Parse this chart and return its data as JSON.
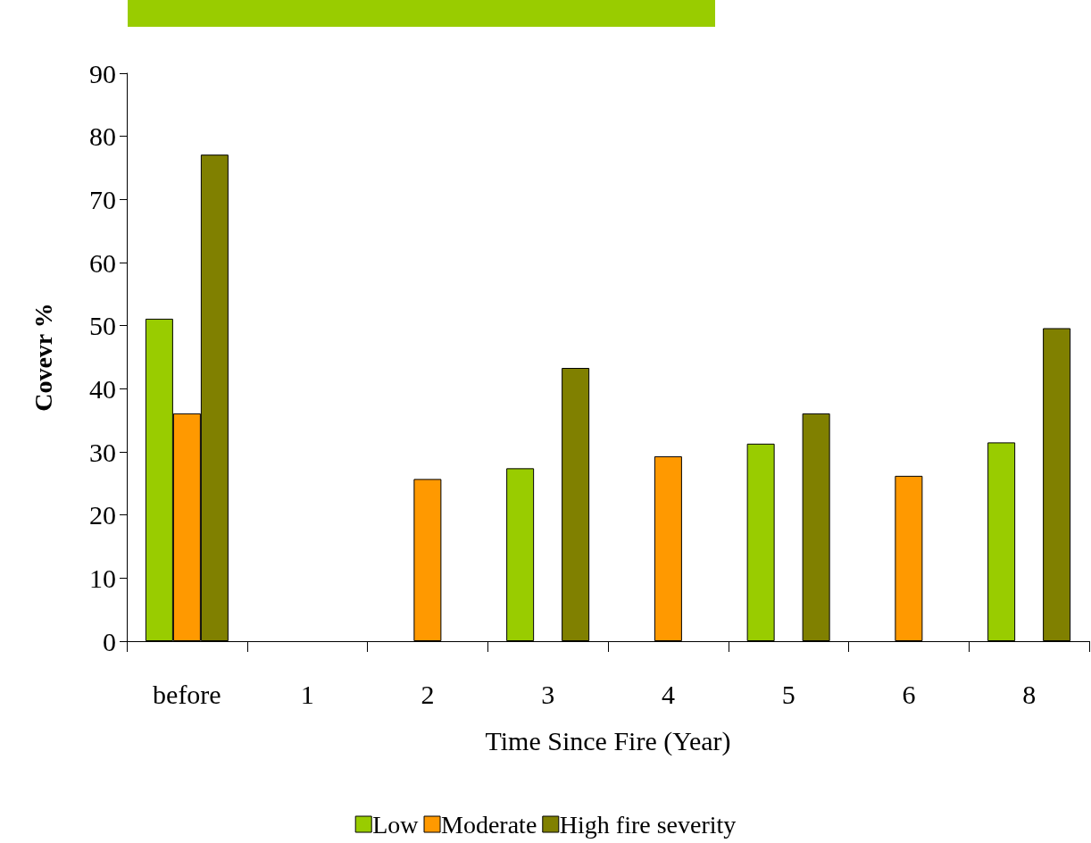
{
  "chart_data": {
    "type": "bar",
    "xlabel": "Time Since Fire (Year)",
    "ylabel": "Covevr %",
    "categories": [
      "before",
      "1",
      "2",
      "3",
      "4",
      "5",
      "6",
      "8"
    ],
    "series": [
      {
        "name": "Low",
        "color": "#99cc00",
        "values": [
          51.1,
          null,
          null,
          27.4,
          null,
          31.3,
          null,
          31.5
        ]
      },
      {
        "name": "Moderate",
        "color": "#ff9900",
        "values": [
          36.1,
          null,
          25.7,
          null,
          29.3,
          null,
          26.2,
          null
        ]
      },
      {
        "name": "High fire severity",
        "color": "#808000",
        "values": [
          77.1,
          null,
          null,
          43.3,
          null,
          36.1,
          null,
          49.6
        ]
      }
    ],
    "ylim": [
      0,
      90
    ],
    "yticks": [
      0,
      10,
      20,
      30,
      40,
      50,
      60,
      70,
      80,
      90
    ],
    "grid": false,
    "legend": "bottom"
  }
}
